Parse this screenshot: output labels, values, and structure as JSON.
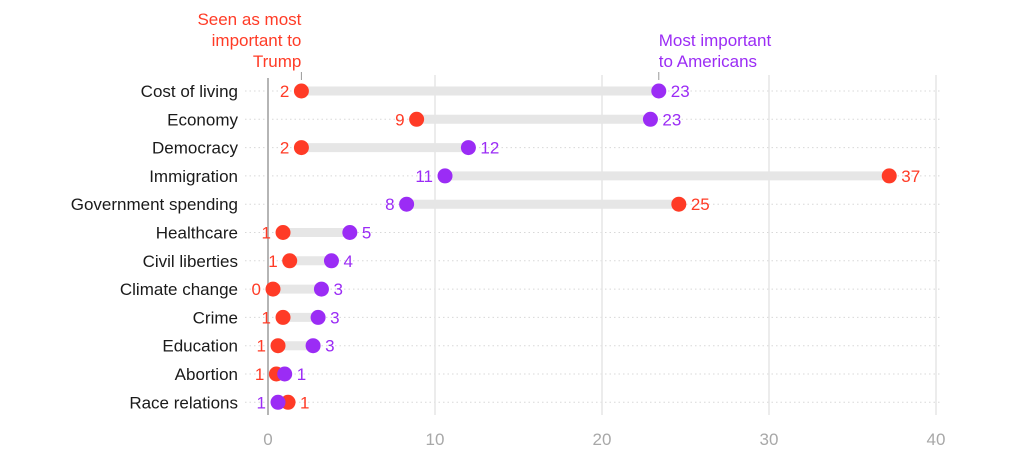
{
  "chart_data": {
    "type": "dumbbell",
    "xlim": [
      0,
      40
    ],
    "xticks": [
      0,
      10,
      20,
      30,
      40
    ],
    "grid": true,
    "colors": {
      "trump": "#ff3b26",
      "americans": "#9b2cf5",
      "bar": "#e6e6e6"
    },
    "series": [
      {
        "key": "trump",
        "name": "Seen as most important to Trump",
        "name_lines": [
          "Seen as most",
          "important to",
          "Trump"
        ]
      },
      {
        "key": "americans",
        "name": "Most important to Americans",
        "name_lines": [
          "Most important",
          "to Americans"
        ]
      }
    ],
    "categories": [
      "Cost of living",
      "Economy",
      "Democracy",
      "Immigration",
      "Government spending",
      "Healthcare",
      "Civil liberties",
      "Climate change",
      "Crime",
      "Education",
      "Abortion",
      "Race relations"
    ],
    "trump": [
      2.0,
      8.9,
      2.0,
      37.2,
      24.6,
      0.9,
      1.3,
      0.3,
      0.9,
      0.6,
      0.5,
      1.2
    ],
    "americans": [
      23.4,
      22.9,
      12.0,
      10.6,
      8.3,
      4.9,
      3.8,
      3.2,
      3.0,
      2.7,
      1.0,
      0.6
    ],
    "trump_labels": [
      "2",
      "9",
      "2",
      "37",
      "25",
      "1",
      "1",
      "0",
      "1",
      "1",
      "1",
      "1"
    ],
    "americans_labels": [
      "23",
      "23",
      "12",
      "11",
      "8",
      "5",
      "4",
      "3",
      "3",
      "3",
      "1",
      "1"
    ]
  }
}
